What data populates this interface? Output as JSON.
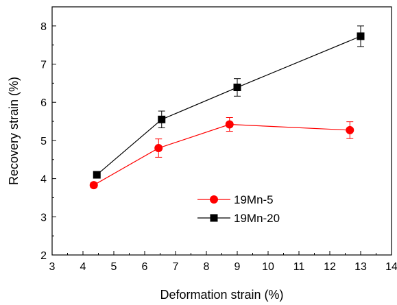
{
  "chart_data": {
    "type": "line",
    "xlabel": "Deformation strain (%)",
    "ylabel": "Recovery strain (%)",
    "xlim": [
      3,
      14
    ],
    "ylim": [
      2,
      8.5
    ],
    "xticks": [
      "3",
      "4",
      "5",
      "6",
      "7",
      "8",
      "9",
      "10",
      "11",
      "12",
      "13",
      "14"
    ],
    "yticks": [
      "2",
      "3",
      "4",
      "5",
      "6",
      "7",
      "8"
    ],
    "grid": false,
    "legend_position": "center-right",
    "series": [
      {
        "name": "19Mn-5",
        "color": "#ff0000",
        "marker": "circle",
        "points": [
          {
            "x": 4.35,
            "y": 3.83,
            "err": 0.06
          },
          {
            "x": 6.45,
            "y": 4.8,
            "err": 0.24
          },
          {
            "x": 8.75,
            "y": 5.42,
            "err": 0.18
          },
          {
            "x": 12.65,
            "y": 5.27,
            "err": 0.22
          }
        ]
      },
      {
        "name": "19Mn-20",
        "color": "#000000",
        "marker": "square",
        "points": [
          {
            "x": 4.45,
            "y": 4.1,
            "err": 0.04
          },
          {
            "x": 6.55,
            "y": 5.55,
            "err": 0.22
          },
          {
            "x": 9.0,
            "y": 6.39,
            "err": 0.23
          },
          {
            "x": 13.0,
            "y": 7.73,
            "err": 0.27
          }
        ]
      }
    ]
  }
}
